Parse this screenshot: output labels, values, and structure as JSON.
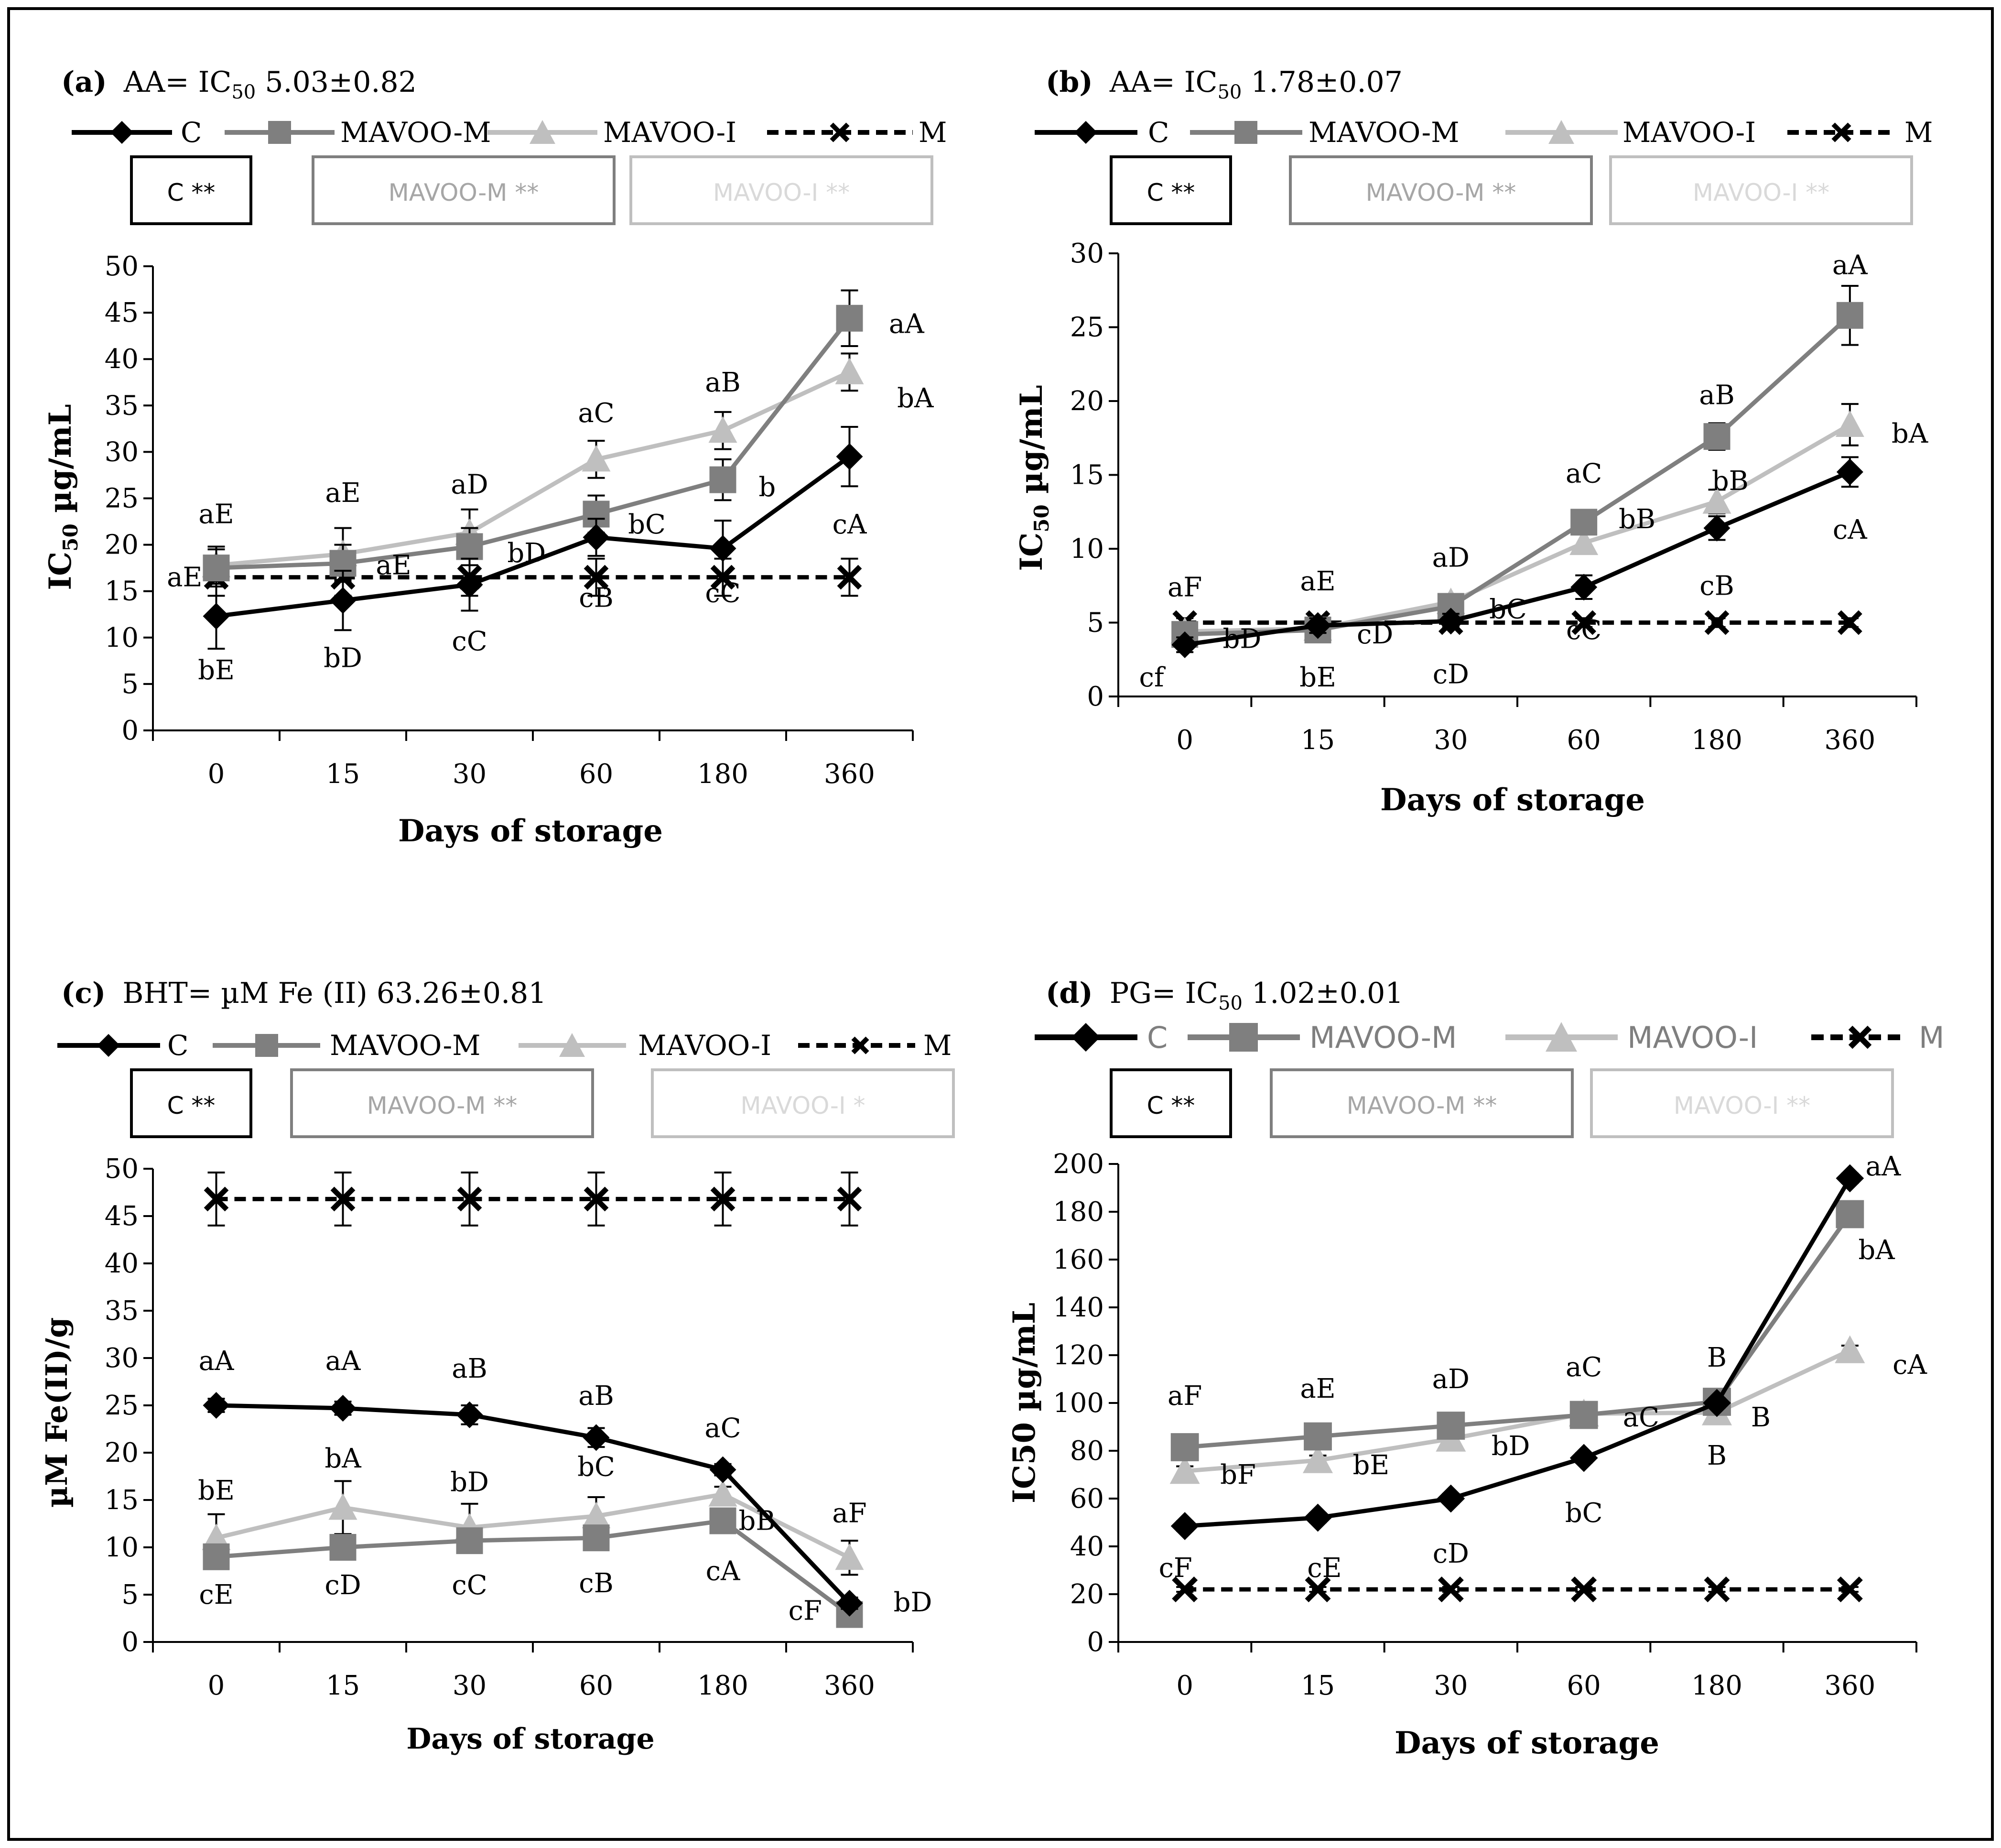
{
  "colors": {
    "C": "#000000",
    "MAVOO-M": "#7f7f7f",
    "MAVOO-I": "#bfbfbf",
    "M": "#000000"
  },
  "chart_data": [
    {
      "type": "line",
      "panel": "a",
      "title_label": "(a)",
      "title_parts": [
        "AA= IC",
        "50",
        " 5.03±0.82"
      ],
      "legend": [
        "C",
        "MAVOO-M",
        "MAVOO-I",
        "M"
      ],
      "boxes": [
        "C **",
        "MAVOO-M **",
        "MAVOO-I **"
      ],
      "ylabel_parts": [
        "IC",
        "50",
        " µg/mL"
      ],
      "xlabel": "Days of storage",
      "categories": [
        "0",
        "15",
        "30",
        "60",
        "180",
        "360"
      ],
      "ylim": [
        0,
        50
      ],
      "yticks": [
        "0",
        "5",
        "10",
        "15",
        "20",
        "25",
        "30",
        "35",
        "40",
        "45",
        "50"
      ],
      "series": [
        {
          "name": "C",
          "values": [
            12.3,
            14,
            15.7,
            20.8,
            19.6,
            29.5
          ],
          "errors": [
            3.5,
            3.2,
            2.8,
            2.0,
            3.0,
            3.2
          ]
        },
        {
          "name": "MAVOO-M",
          "values": [
            17.5,
            18,
            19.8,
            23.3,
            27,
            44.4
          ],
          "errors": [
            2.0,
            2.0,
            2.0,
            2.0,
            2.2,
            3.0
          ]
        },
        {
          "name": "MAVOO-I",
          "values": [
            17.8,
            19,
            21.3,
            29.2,
            32.3,
            38.6
          ],
          "errors": [
            2.0,
            2.8,
            2.5,
            2.0,
            2.0,
            2.0
          ]
        },
        {
          "name": "M",
          "values": [
            16.5,
            16.5,
            16.5,
            16.5,
            16.5,
            16.5
          ],
          "errors": [
            2.0,
            2.0,
            2.0,
            2.0,
            2.0,
            2.0
          ]
        }
      ],
      "labels": [
        {
          "t": "aE",
          "x": 0,
          "y": 23.3,
          "dx": 0
        },
        {
          "t": "aE",
          "x": 0,
          "y": 16.5,
          "dx": -0.25
        },
        {
          "t": "bE",
          "x": 0,
          "y": 6.5,
          "dx": 0
        },
        {
          "t": "aE",
          "x": 1,
          "y": 25.6,
          "dx": 0
        },
        {
          "t": "aE",
          "x": 1,
          "y": 17.8,
          "dx": 0.4
        },
        {
          "t": "bD",
          "x": 1,
          "y": 7.8,
          "dx": 0
        },
        {
          "t": "aD",
          "x": 2,
          "y": 26.5,
          "dx": 0
        },
        {
          "t": "bD",
          "x": 2,
          "y": 19.1,
          "dx": 0.45
        },
        {
          "t": "cC",
          "x": 2,
          "y": 9.6,
          "dx": 0
        },
        {
          "t": "aC",
          "x": 3,
          "y": 34.2,
          "dx": 0
        },
        {
          "t": "bC",
          "x": 3,
          "y": 22.2,
          "dx": 0.4
        },
        {
          "t": "cB",
          "x": 3,
          "y": 14.3,
          "dx": 0
        },
        {
          "t": "aB",
          "x": 4,
          "y": 37.5,
          "dx": 0
        },
        {
          "t": "b",
          "x": 4,
          "y": 26.2,
          "dx": 0.35
        },
        {
          "t": "cC",
          "x": 4,
          "y": 14.8,
          "dx": 0
        },
        {
          "t": "aA",
          "x": 5,
          "y": 43.8,
          "dx": 0.45
        },
        {
          "t": "bA",
          "x": 5,
          "y": 35.8,
          "dx": 0.52
        },
        {
          "t": "cA",
          "x": 5,
          "y": 22.2,
          "dx": 0
        }
      ]
    },
    {
      "type": "line",
      "panel": "b",
      "title_label": "(b)",
      "title_parts": [
        "AA= IC",
        "50",
        " 1.78±0.07"
      ],
      "legend": [
        "C",
        "MAVOO-M",
        "MAVOO-I",
        "M"
      ],
      "boxes": [
        "C **",
        "MAVOO-M **",
        "MAVOO-I **"
      ],
      "ylabel_parts": [
        "IC",
        "50",
        "  µg/mL"
      ],
      "xlabel": "Days of storage",
      "categories": [
        "0",
        "15",
        "30",
        "60",
        "180",
        "360"
      ],
      "ylim": [
        0,
        30
      ],
      "yticks": [
        "0",
        "5",
        "10",
        "15",
        "20",
        "25",
        "30"
      ],
      "series": [
        {
          "name": "C",
          "values": [
            3.5,
            4.8,
            5.1,
            7.4,
            11.4,
            15.2
          ],
          "errors": [
            0.5,
            0.5,
            0.5,
            0.8,
            0.8,
            1.0
          ]
        },
        {
          "name": "MAVOO-M",
          "values": [
            4.2,
            4.5,
            6.1,
            11.8,
            17.6,
            25.8
          ],
          "errors": [
            0.5,
            0.5,
            0.5,
            0.8,
            0.9,
            2.0
          ]
        },
        {
          "name": "MAVOO-I",
          "values": [
            4.4,
            4.6,
            6.4,
            10.4,
            13.2,
            18.4
          ],
          "errors": [
            0.5,
            0.5,
            0.5,
            0.6,
            0.8,
            1.4
          ]
        },
        {
          "name": "M",
          "values": [
            5,
            5,
            5,
            5,
            5,
            5
          ],
          "errors": [
            0.3,
            0.3,
            0.3,
            0.3,
            0.3,
            0.3
          ]
        }
      ],
      "labels": [
        {
          "t": "aF",
          "x": 0,
          "y": 7.4,
          "dx": 0
        },
        {
          "t": "bD",
          "x": 0,
          "y": 3.9,
          "dx": 0.43
        },
        {
          "t": "cf",
          "x": 0,
          "y": 1.3,
          "dx": -0.25
        },
        {
          "t": "aE",
          "x": 1,
          "y": 7.8,
          "dx": 0
        },
        {
          "t": "cD",
          "x": 1,
          "y": 4.2,
          "dx": 0.43
        },
        {
          "t": "bE",
          "x": 1,
          "y": 1.3,
          "dx": 0
        },
        {
          "t": "aD",
          "x": 2,
          "y": 9.4,
          "dx": 0
        },
        {
          "t": "bC",
          "x": 2,
          "y": 5.9,
          "dx": 0.43
        },
        {
          "t": "cD",
          "x": 2,
          "y": 1.5,
          "dx": 0
        },
        {
          "t": "aC",
          "x": 3,
          "y": 15.1,
          "dx": 0
        },
        {
          "t": "bB",
          "x": 3,
          "y": 12,
          "dx": 0.4
        },
        {
          "t": "cC",
          "x": 3,
          "y": 4.5,
          "dx": 0
        },
        {
          "t": "aB",
          "x": 4,
          "y": 20.4,
          "dx": 0
        },
        {
          "t": "bB",
          "x": 4,
          "y": 14.6,
          "dx": 0.1
        },
        {
          "t": "cB",
          "x": 4,
          "y": 7.5,
          "dx": 0
        },
        {
          "t": "aA",
          "x": 5,
          "y": 29.2,
          "dx": 0
        },
        {
          "t": "bA",
          "x": 5,
          "y": 17.8,
          "dx": 0.45
        },
        {
          "t": "cA",
          "x": 5,
          "y": 11.3,
          "dx": 0
        }
      ]
    },
    {
      "type": "line",
      "panel": "c",
      "title_label": "(c)",
      "title_parts": [
        "BHT= µM Fe (II) 63.26±0.81"
      ],
      "legend": [
        "C",
        "MAVOO-M",
        "MAVOO-I",
        "M"
      ],
      "boxes": [
        "C **",
        "MAVOO-M **",
        "MAVOO-I *"
      ],
      "ylabel_parts": [
        "µM Fe(II)/g"
      ],
      "xlabel": "Days of storage",
      "categories": [
        "0",
        "15",
        "30",
        "60",
        "180",
        "360"
      ],
      "ylim": [
        0,
        50
      ],
      "yticks": [
        "0",
        "5",
        "10",
        "15",
        "20",
        "25",
        "30",
        "35",
        "40",
        "45",
        "50"
      ],
      "series": [
        {
          "name": "C",
          "values": [
            25,
            24.7,
            24,
            21.6,
            18.2,
            4.1
          ],
          "errors": [
            0.7,
            0.7,
            1.0,
            1.0,
            0.6,
            0.6
          ]
        },
        {
          "name": "MAVOO-M",
          "values": [
            9,
            10,
            10.7,
            11,
            12.8,
            2.9
          ],
          "errors": [
            0.5,
            0.5,
            0.5,
            0.5,
            0.5,
            0.5
          ]
        },
        {
          "name": "MAVOO-I",
          "values": [
            11,
            14.2,
            12.1,
            13.3,
            15.6,
            8.9
          ],
          "errors": [
            2.5,
            2.8,
            2.5,
            2.0,
            0.8,
            1.8
          ]
        },
        {
          "name": "M",
          "values": [
            46.8,
            46.8,
            46.8,
            46.8,
            46.8,
            46.8
          ],
          "errors": [
            2.8,
            2.8,
            2.8,
            2.8,
            2.8,
            2.8
          ]
        }
      ],
      "labels": [
        {
          "t": "aA",
          "x": 0,
          "y": 29.7,
          "dx": 0
        },
        {
          "t": "bE",
          "x": 0,
          "y": 16,
          "dx": 0
        },
        {
          "t": "cE",
          "x": 0,
          "y": 5,
          "dx": 0
        },
        {
          "t": "aA",
          "x": 1,
          "y": 29.7,
          "dx": 0
        },
        {
          "t": "bA",
          "x": 1,
          "y": 19.4,
          "dx": 0
        },
        {
          "t": "cD",
          "x": 1,
          "y": 6,
          "dx": 0
        },
        {
          "t": "aB",
          "x": 2,
          "y": 28.9,
          "dx": 0
        },
        {
          "t": "bD",
          "x": 2,
          "y": 16.9,
          "dx": 0
        },
        {
          "t": "cC",
          "x": 2,
          "y": 6,
          "dx": 0
        },
        {
          "t": "aB",
          "x": 3,
          "y": 26,
          "dx": 0
        },
        {
          "t": "bC",
          "x": 3,
          "y": 18.5,
          "dx": 0
        },
        {
          "t": "cB",
          "x": 3,
          "y": 6.2,
          "dx": 0
        },
        {
          "t": "aC",
          "x": 4,
          "y": 22.6,
          "dx": 0
        },
        {
          "t": "bB",
          "x": 4,
          "y": 12.8,
          "dx": 0.27
        },
        {
          "t": "cA",
          "x": 4,
          "y": 7.5,
          "dx": 0
        },
        {
          "t": "cF",
          "x": 4,
          "y": 3.3,
          "dx": 0.65
        },
        {
          "t": "aF",
          "x": 5,
          "y": 13.6,
          "dx": 0
        },
        {
          "t": "bD",
          "x": 5,
          "y": 4.2,
          "dx": 0.5
        }
      ]
    },
    {
      "type": "line",
      "panel": "d",
      "title_label": "(d)",
      "title_parts": [
        "PG= IC",
        "50",
        " 1.02±0.01"
      ],
      "legend": [
        "C",
        "MAVOO-M",
        "MAVOO-I",
        "M"
      ],
      "boxes": [
        "C **",
        "MAVOO-M **",
        "MAVOO-I **"
      ],
      "ylabel_parts": [
        "IC50 µg/mL"
      ],
      "xlabel": "Days of storage",
      "categories": [
        "0",
        "15",
        "30",
        "60",
        "180",
        "360"
      ],
      "ylim": [
        0,
        200
      ],
      "yticks": [
        "0",
        "20",
        "40",
        "60",
        "80",
        "100",
        "120",
        "140",
        "160",
        "180",
        "200"
      ],
      "series": [
        {
          "name": "C",
          "values": [
            48.5,
            52,
            60,
            77,
            100,
            194
          ],
          "errors": [
            2,
            2,
            2,
            2,
            2,
            2
          ]
        },
        {
          "name": "MAVOO-M",
          "values": [
            81.5,
            86,
            90.5,
            95,
            100.5,
            179
          ],
          "errors": [
            2,
            2,
            2,
            2,
            2,
            2
          ]
        },
        {
          "name": "MAVOO-I",
          "values": [
            71.5,
            76,
            85,
            95.5,
            96,
            122
          ],
          "errors": [
            2,
            2,
            2,
            2,
            2,
            2
          ]
        },
        {
          "name": "M",
          "values": [
            22,
            22,
            22,
            22,
            22,
            22
          ],
          "errors": [
            1,
            1,
            1,
            1,
            1,
            1
          ]
        }
      ],
      "labels": [
        {
          "t": "aF",
          "x": 0,
          "y": 103,
          "dx": 0
        },
        {
          "t": "bF",
          "x": 0,
          "y": 70,
          "dx": 0.4
        },
        {
          "t": "cF",
          "x": 0,
          "y": 31,
          "dx": -0.07
        },
        {
          "t": "aE",
          "x": 1,
          "y": 106,
          "dx": 0
        },
        {
          "t": "bE",
          "x": 1,
          "y": 74,
          "dx": 0.4
        },
        {
          "t": "cE",
          "x": 1,
          "y": 31,
          "dx": 0.05
        },
        {
          "t": "aD",
          "x": 2,
          "y": 110,
          "dx": 0
        },
        {
          "t": "bD",
          "x": 2,
          "y": 82,
          "dx": 0.45
        },
        {
          "t": "cD",
          "x": 2,
          "y": 37,
          "dx": 0
        },
        {
          "t": "aC",
          "x": 3,
          "y": 115,
          "dx": 0
        },
        {
          "t": "aC",
          "x": 3,
          "y": 94,
          "dx": 0.43
        },
        {
          "t": "bC",
          "x": 3,
          "y": 54,
          "dx": 0
        },
        {
          "t": "B",
          "x": 4,
          "y": 119,
          "dx": 0
        },
        {
          "t": "B",
          "x": 4,
          "y": 94,
          "dx": 0.33
        },
        {
          "t": "B",
          "x": 4,
          "y": 78,
          "dx": 0
        },
        {
          "t": "aA",
          "x": 5,
          "y": 199,
          "dx": 0.25
        },
        {
          "t": "bA",
          "x": 5,
          "y": 164,
          "dx": 0.2
        },
        {
          "t": "cA",
          "x": 5,
          "y": 116,
          "dx": 0.45
        }
      ]
    }
  ]
}
